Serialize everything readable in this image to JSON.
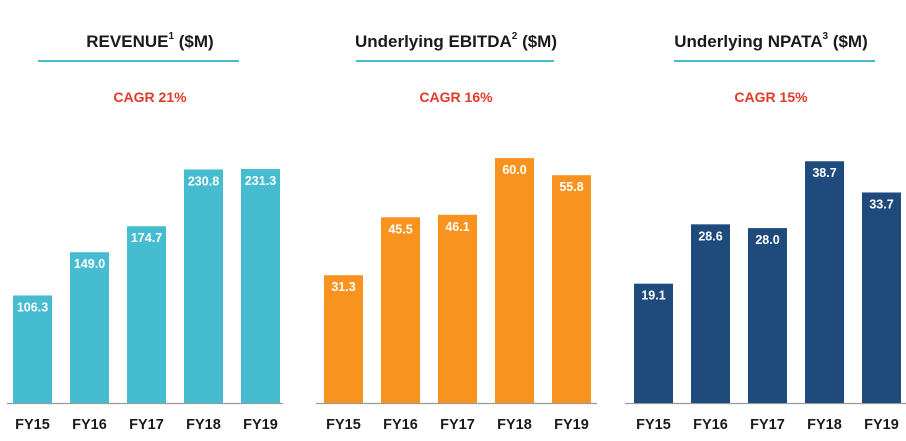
{
  "chart_data": [
    {
      "type": "bar",
      "title": "REVENUE",
      "title_sup": "1",
      "title_unit": "($M)",
      "annotation": "CAGR 21%",
      "categories": [
        "FY15",
        "FY16",
        "FY17",
        "FY18",
        "FY19"
      ],
      "values": [
        106.3,
        149.0,
        174.7,
        230.8,
        231.3
      ],
      "labels": [
        "106.3",
        "149.0",
        "174.7",
        "230.8",
        "231.3"
      ],
      "color": "#45bcd0",
      "ylim": [
        0,
        255
      ],
      "grid": false
    },
    {
      "type": "bar",
      "title": "Underlying EBITDA",
      "title_sup": "2",
      "title_unit": "($M)",
      "annotation": "CAGR 16%",
      "categories": [
        "FY15",
        "FY16",
        "FY17",
        "FY18",
        "FY19"
      ],
      "values": [
        31.3,
        45.5,
        46.1,
        60.0,
        55.8
      ],
      "labels": [
        "31.3",
        "45.5",
        "46.1",
        "60.0",
        "55.8"
      ],
      "color": "#f7931e",
      "ylim": [
        0,
        63.2
      ],
      "grid": false
    },
    {
      "type": "bar",
      "title": "Underlying NPATA",
      "title_sup": "3",
      "title_unit": "($M)",
      "annotation": "CAGR 15%",
      "categories": [
        "FY15",
        "FY16",
        "FY17",
        "FY18",
        "FY19"
      ],
      "values": [
        19.1,
        28.6,
        28.0,
        38.7,
        33.7
      ],
      "labels": [
        "19.1",
        "28.6",
        "28.0",
        "38.7",
        "33.7"
      ],
      "color": "#1f4a7c",
      "ylim": [
        0,
        41.3
      ],
      "grid": false
    }
  ],
  "colors": {
    "underline": "#45bcd0",
    "cagr": "#e03a2a",
    "axis": "#9a9a9a"
  }
}
